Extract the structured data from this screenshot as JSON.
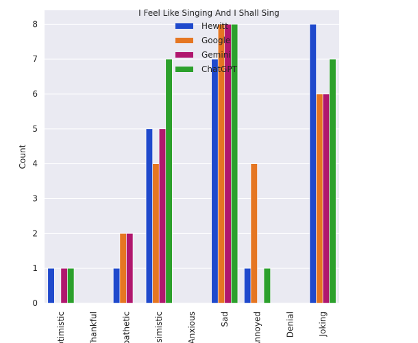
{
  "chart_data": {
    "type": "bar",
    "title": "I Feel Like Singing And I Shall Sing",
    "xlabel": "",
    "ylabel": "Count",
    "ylim": [
      0,
      8.4
    ],
    "yticks": [
      0,
      1,
      2,
      3,
      4,
      5,
      6,
      7,
      8
    ],
    "grid": true,
    "legend_position": "upper-center",
    "categories": [
      "Optimistic",
      "Thankful",
      "Empathetic",
      "Pessimistic",
      "Anxious",
      "Sad",
      "Annoyed",
      "Denial",
      "Joking"
    ],
    "series": [
      {
        "name": "Hewitt",
        "color": "#1f49cc",
        "values": [
          1,
          0,
          1,
          5,
          0,
          7,
          1,
          0,
          8
        ]
      },
      {
        "name": "Google",
        "color": "#e57622",
        "values": [
          0,
          0,
          2,
          4,
          0,
          8,
          4,
          0,
          6
        ]
      },
      {
        "name": "Gemini",
        "color": "#b0176e",
        "values": [
          1,
          0,
          2,
          5,
          0,
          8,
          0,
          0,
          6
        ]
      },
      {
        "name": "ChatGPT",
        "color": "#2ca02c",
        "values": [
          1,
          0,
          0,
          7,
          0,
          8,
          1,
          0,
          7
        ]
      }
    ],
    "background_color": "#eaeaf2",
    "grid_color": "#ffffff"
  }
}
